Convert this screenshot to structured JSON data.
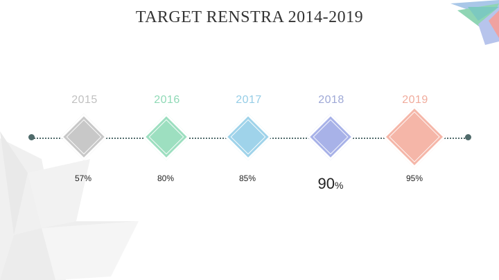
{
  "title": "TARGET RENSTRA 2014-2019",
  "milestones": [
    {
      "year": "2015",
      "value": "57%",
      "color": "#c8c8c8",
      "text_color": "#c0c0c0"
    },
    {
      "year": "2016",
      "value": "80%",
      "color": "#9ddfc0",
      "text_color": "#8fd9b6"
    },
    {
      "year": "2017",
      "value": "85%",
      "color": "#9fd3ea",
      "text_color": "#95cde6"
    },
    {
      "year": "2018",
      "value": "90",
      "unit": "%",
      "color": "#a8b2e8",
      "text_color": "#9ea8d6"
    },
    {
      "year": "2019",
      "value": "95%",
      "color": "#f5b6a8",
      "text_color": "#f0ab9c"
    }
  ],
  "colors": {
    "line": "#4f6a6a",
    "accent_green": "#8fd5b4",
    "accent_blue": "#9fb8e0",
    "accent_red": "#f0a2a0"
  }
}
